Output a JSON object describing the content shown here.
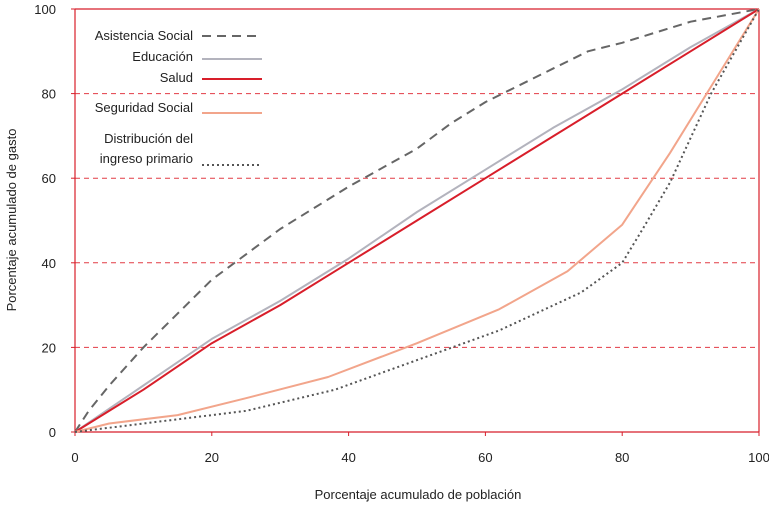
{
  "chart_data": {
    "type": "line",
    "xlabel": "Porcentaje acumulado de  población",
    "ylabel": "Porcentaje acumulado de  gasto",
    "xlim": [
      0,
      100
    ],
    "ylim": [
      0,
      100
    ],
    "x_ticks": [
      "0",
      "20",
      "40",
      "60",
      "80",
      "100"
    ],
    "y_ticks": [
      "0",
      "20",
      "40",
      "60",
      "80",
      "100"
    ],
    "grid": "horizontal dashed",
    "legend_position": "top-left",
    "series": [
      {
        "name": "Asistencia Social",
        "color": "#666666",
        "style": "dashed",
        "points": [
          [
            0,
            0
          ],
          [
            2,
            5
          ],
          [
            5,
            11
          ],
          [
            10,
            20
          ],
          [
            15,
            28
          ],
          [
            20,
            36
          ],
          [
            30,
            48
          ],
          [
            40,
            58
          ],
          [
            50,
            67
          ],
          [
            55,
            73
          ],
          [
            60,
            78
          ],
          [
            70,
            86
          ],
          [
            75,
            90
          ],
          [
            80,
            92
          ],
          [
            90,
            97
          ],
          [
            100,
            100
          ]
        ]
      },
      {
        "name": "Educación",
        "color": "#b3b3bd",
        "style": "solid",
        "points": [
          [
            0,
            0
          ],
          [
            10,
            11
          ],
          [
            20,
            22
          ],
          [
            30,
            31
          ],
          [
            40,
            41
          ],
          [
            50,
            52
          ],
          [
            60,
            62
          ],
          [
            70,
            72
          ],
          [
            80,
            81
          ],
          [
            90,
            91
          ],
          [
            100,
            100
          ]
        ]
      },
      {
        "name": "Salud",
        "color": "#d81e2a",
        "style": "solid",
        "points": [
          [
            0,
            0
          ],
          [
            10,
            10
          ],
          [
            20,
            21
          ],
          [
            30,
            30
          ],
          [
            40,
            40
          ],
          [
            50,
            50
          ],
          [
            60,
            60
          ],
          [
            70,
            70
          ],
          [
            80,
            80
          ],
          [
            90,
            90
          ],
          [
            100,
            100
          ]
        ]
      },
      {
        "name": "Seguridad Social",
        "color": "#f2a58b",
        "style": "solid",
        "points": [
          [
            0,
            0
          ],
          [
            5,
            2
          ],
          [
            15,
            4
          ],
          [
            25,
            8
          ],
          [
            37,
            13
          ],
          [
            50,
            21
          ],
          [
            62,
            29
          ],
          [
            72,
            38
          ],
          [
            80,
            49
          ],
          [
            87,
            66
          ],
          [
            100,
            100
          ]
        ]
      },
      {
        "name": "Distribución del\ningreso primario",
        "color": "#555555",
        "style": "dotted",
        "points": [
          [
            0,
            0
          ],
          [
            10,
            2
          ],
          [
            25,
            5
          ],
          [
            38,
            10
          ],
          [
            50,
            17
          ],
          [
            62,
            24
          ],
          [
            74,
            33
          ],
          [
            80,
            40
          ],
          [
            83,
            48
          ],
          [
            87,
            59
          ],
          [
            93,
            80
          ],
          [
            100,
            100
          ]
        ]
      }
    ]
  }
}
